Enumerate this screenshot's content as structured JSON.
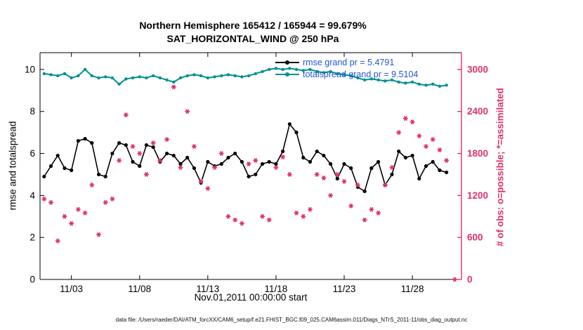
{
  "title": {
    "line1": "Northern Hemisphere 165412 / 165944 = 99.679%",
    "line2": "SAT_HORIZONTAL_WIND @ 250 hPa"
  },
  "axes": {
    "ylabel_left": "rmse and totalspread",
    "ylabel_right": "# of obs: o=possible; *=assimilated",
    "xlabel": "Nov.01,2011 00:00:00 start",
    "left_ticks": [
      0,
      2,
      4,
      6,
      8,
      10
    ],
    "right_ticks": [
      0,
      600,
      1200,
      1800,
      2400,
      3000
    ],
    "x_ticks": [
      {
        "day": 2,
        "label": "11/03"
      },
      {
        "day": 7,
        "label": "11/08"
      },
      {
        "day": 12,
        "label": "11/13"
      },
      {
        "day": 17,
        "label": "11/18"
      },
      {
        "day": 22,
        "label": "11/23"
      },
      {
        "day": 27,
        "label": "11/28"
      }
    ]
  },
  "legend": [
    {
      "label": "rmse grand pr = 5.4791",
      "color": "#000000"
    },
    {
      "label": "totalspread grand pr = 9.5104",
      "color": "#009090"
    }
  ],
  "caption": "data file: /Users/raeder/DAI/ATM_forcXX/CAM6_setup/f.e21.FHIST_BGC.f09_025.CAM6assim.011/Diags_NTrS_2011-11/obs_diag_output.nc",
  "colors": {
    "teal": "#009090",
    "pink": "#e0306e",
    "legend_text": "#2256d9",
    "axis_black": "#000000"
  },
  "chart_data": {
    "type": "line",
    "title": "Northern Hemisphere 165412 / 165944 = 99.679% — SAT_HORIZONTAL_WIND @ 250 hPa",
    "xlabel": "Nov.01,2011 00:00:00 start",
    "ylabel_left": "rmse and totalspread",
    "ylabel_right": "# of obs: o=possible; *=assimilated",
    "xlim": [
      -0.3,
      30.6
    ],
    "ylim_left": [
      0,
      10.8
    ],
    "ylim_right": [
      0,
      3240
    ],
    "grid": false,
    "legend_position": "top-center-inside",
    "x_days": [
      0,
      0.5,
      1,
      1.5,
      2,
      2.5,
      3,
      3.5,
      4,
      4.5,
      5,
      5.5,
      6,
      6.5,
      7,
      7.5,
      8,
      8.5,
      9,
      9.5,
      10,
      10.5,
      11,
      11.5,
      12,
      12.5,
      13,
      13.5,
      14,
      14.5,
      15,
      15.5,
      16,
      16.5,
      17,
      17.5,
      18,
      18.5,
      19,
      19.5,
      20,
      20.5,
      21,
      21.5,
      22,
      22.5,
      23,
      23.5,
      24,
      24.5,
      25,
      25.5,
      26,
      26.5,
      27,
      27.5,
      28,
      28.5,
      29,
      29.5,
      30.1
    ],
    "series": [
      {
        "name": "rmse",
        "axis": "left",
        "color": "#000000",
        "marker": "dot",
        "grand_mean": 5.4791,
        "values": [
          4.9,
          5.4,
          5.9,
          5.3,
          5.2,
          6.6,
          6.7,
          6.5,
          5.0,
          4.9,
          6.0,
          6.5,
          6.4,
          5.6,
          5.4,
          6.4,
          6.3,
          5.6,
          6.0,
          5.9,
          5.5,
          5.8,
          5.3,
          4.6,
          5.6,
          5.4,
          5.5,
          5.8,
          6.0,
          5.6,
          4.9,
          5.0,
          5.5,
          5.6,
          5.5,
          6.1,
          7.4,
          7.0,
          5.8,
          5.6,
          6.1,
          5.9,
          5.5,
          4.8,
          5.5,
          5.3,
          4.4,
          4.2,
          5.3,
          5.6,
          4.5,
          5.0,
          6.1,
          5.8,
          5.9,
          4.8,
          5.4,
          5.6,
          5.2,
          5.1,
          null
        ]
      },
      {
        "name": "totalspread",
        "axis": "left",
        "color": "#009090",
        "marker": "dot",
        "grand_mean": 9.5104,
        "values": [
          9.8,
          9.75,
          9.7,
          9.8,
          9.6,
          9.7,
          10.0,
          9.7,
          9.6,
          9.65,
          9.6,
          9.3,
          9.55,
          9.6,
          9.65,
          9.6,
          9.7,
          9.6,
          9.5,
          9.4,
          9.6,
          9.7,
          9.75,
          9.7,
          9.6,
          9.65,
          9.7,
          9.75,
          9.7,
          9.65,
          9.7,
          9.8,
          9.9,
          10.0,
          10.05,
          10.0,
          10.05,
          10.0,
          9.95,
          10.0,
          9.9,
          9.85,
          9.9,
          9.8,
          9.75,
          9.7,
          9.6,
          9.5,
          9.55,
          9.5,
          9.45,
          9.5,
          9.4,
          9.35,
          9.4,
          9.3,
          9.25,
          9.3,
          9.2,
          9.25,
          null
        ]
      },
      {
        "name": "obs_assimilated",
        "axis": "right",
        "color": "#e0306e",
        "marker": "asterisk",
        "values": [
          1150,
          1100,
          550,
          900,
          800,
          1000,
          950,
          1350,
          640,
          1100,
          1150,
          1700,
          2350,
          1900,
          1800,
          1500,
          1950,
          1700,
          2000,
          2750,
          1600,
          2400,
          1900,
          1400,
          1300,
          1600,
          1800,
          900,
          850,
          800,
          1650,
          1700,
          900,
          850,
          1600,
          1750,
          1500,
          950,
          900,
          1000,
          1500,
          1450,
          1200,
          1500,
          1400,
          1050,
          1350,
          850,
          1000,
          950,
          1350,
          1600,
          2100,
          2300,
          2250,
          2050,
          1900,
          2000,
          1850,
          1700,
          0
        ]
      }
    ]
  }
}
